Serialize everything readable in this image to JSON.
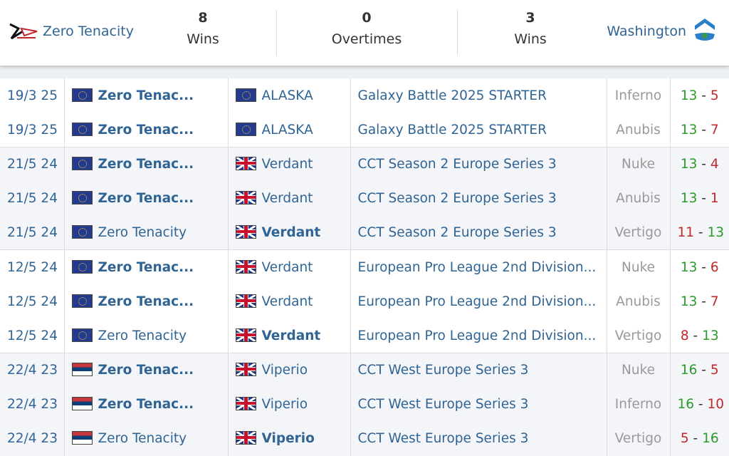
{
  "header": {
    "team1": {
      "name": "Zero Tenacity",
      "wins": "8",
      "wins_label": "Wins"
    },
    "overtimes": {
      "value": "0",
      "label": "Overtimes"
    },
    "team2": {
      "name": "Washington",
      "wins": "3",
      "wins_label": "Wins"
    }
  },
  "colors": {
    "link": "#2f6494",
    "win": "#2a9a2a",
    "loss": "#c0282b",
    "map": "#999999"
  },
  "rows": [
    {
      "date": "19/3 25",
      "t1": "Zero Tenac...",
      "t1flag": "eu",
      "t1bold": true,
      "t2": "ALASKA",
      "t2flag": "eu",
      "t2bold": false,
      "event": "Galaxy Battle 2025 STARTER",
      "map": "Inferno",
      "s1": "13",
      "s2": "5",
      "group": 0
    },
    {
      "date": "19/3 25",
      "t1": "Zero Tenac...",
      "t1flag": "eu",
      "t1bold": true,
      "t2": "ALASKA",
      "t2flag": "eu",
      "t2bold": false,
      "event": "Galaxy Battle 2025 STARTER",
      "map": "Anubis",
      "s1": "13",
      "s2": "7",
      "group": 0
    },
    {
      "date": "21/5 24",
      "t1": "Zero Tenac...",
      "t1flag": "eu",
      "t1bold": true,
      "t2": "Verdant",
      "t2flag": "uk",
      "t2bold": false,
      "event": "CCT Season 2 Europe Series 3",
      "map": "Nuke",
      "s1": "13",
      "s2": "4",
      "group": 1
    },
    {
      "date": "21/5 24",
      "t1": "Zero Tenac...",
      "t1flag": "eu",
      "t1bold": true,
      "t2": "Verdant",
      "t2flag": "uk",
      "t2bold": false,
      "event": "CCT Season 2 Europe Series 3",
      "map": "Anubis",
      "s1": "13",
      "s2": "1",
      "group": 1
    },
    {
      "date": "21/5 24",
      "t1": "Zero Tenacity",
      "t1flag": "eu",
      "t1bold": false,
      "t2": "Verdant",
      "t2flag": "uk",
      "t2bold": true,
      "event": "CCT Season 2 Europe Series 3",
      "map": "Vertigo",
      "s1": "11",
      "s2": "13",
      "group": 1
    },
    {
      "date": "12/5 24",
      "t1": "Zero Tenac...",
      "t1flag": "eu",
      "t1bold": true,
      "t2": "Verdant",
      "t2flag": "uk",
      "t2bold": false,
      "event": "European Pro League 2nd Division...",
      "map": "Nuke",
      "s1": "13",
      "s2": "6",
      "group": 2
    },
    {
      "date": "12/5 24",
      "t1": "Zero Tenac...",
      "t1flag": "eu",
      "t1bold": true,
      "t2": "Verdant",
      "t2flag": "uk",
      "t2bold": false,
      "event": "European Pro League 2nd Division...",
      "map": "Anubis",
      "s1": "13",
      "s2": "7",
      "group": 2
    },
    {
      "date": "12/5 24",
      "t1": "Zero Tenacity",
      "t1flag": "eu",
      "t1bold": false,
      "t2": "Verdant",
      "t2flag": "uk",
      "t2bold": true,
      "event": "European Pro League 2nd Division...",
      "map": "Vertigo",
      "s1": "8",
      "s2": "13",
      "group": 2
    },
    {
      "date": "22/4 23",
      "t1": "Zero Tenac...",
      "t1flag": "rs",
      "t1bold": true,
      "t2": "Viperio",
      "t2flag": "uk",
      "t2bold": false,
      "event": "CCT West Europe Series 3",
      "map": "Nuke",
      "s1": "16",
      "s2": "5",
      "group": 3
    },
    {
      "date": "22/4 23",
      "t1": "Zero Tenac...",
      "t1flag": "rs",
      "t1bold": true,
      "t2": "Viperio",
      "t2flag": "uk",
      "t2bold": false,
      "event": "CCT West Europe Series 3",
      "map": "Inferno",
      "s1": "16",
      "s2": "10",
      "group": 3
    },
    {
      "date": "22/4 23",
      "t1": "Zero Tenacity",
      "t1flag": "rs",
      "t1bold": false,
      "t2": "Viperio",
      "t2flag": "uk",
      "t2bold": true,
      "event": "CCT West Europe Series 3",
      "map": "Vertigo",
      "s1": "5",
      "s2": "16",
      "group": 3
    }
  ]
}
